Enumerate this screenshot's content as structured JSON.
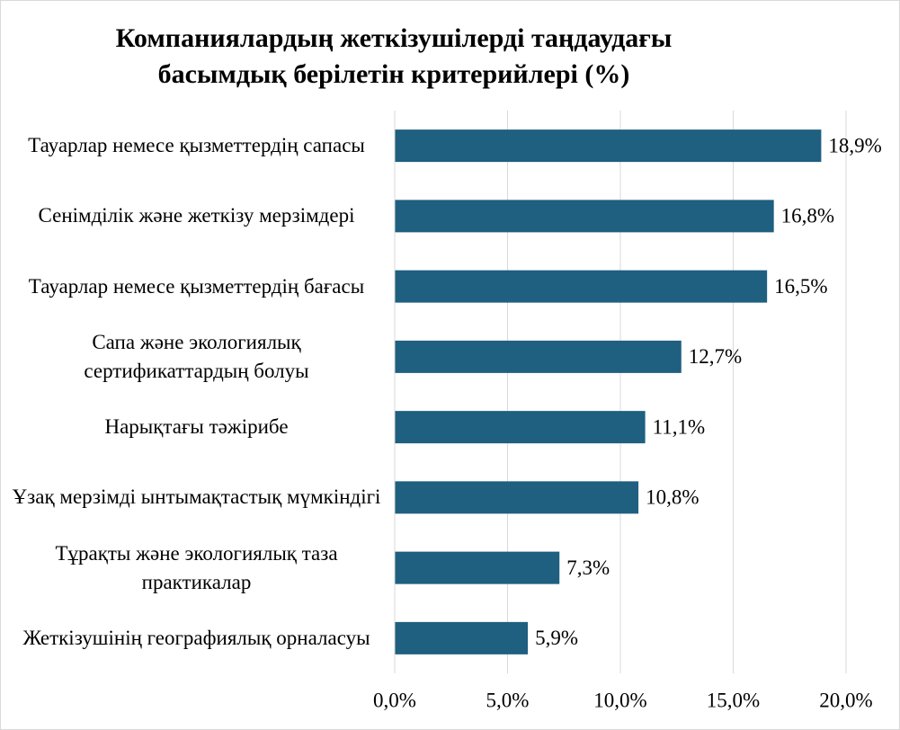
{
  "chart_data": {
    "type": "bar",
    "orientation": "horizontal",
    "title": "Компаниялардың жеткізушілерді таңдаудағы басымдық берілетін критерийлері (%)",
    "categories": [
      "Тауарлар немесе қызметтердің сапасы",
      "Сенімділік және жеткізу мерзімдері",
      "Тауарлар немесе қызметтердің бағасы",
      "Сапа және экологиялық сертификаттардың болуы",
      "Нарықтағы тәжірибе",
      "Ұзақ мерзімді ынтымақтастық мүмкіндігі",
      "Тұрақты және экологиялық таза практикалар",
      "Жеткізушінің географиялық орналасуы"
    ],
    "values": [
      18.9,
      16.8,
      16.5,
      12.7,
      11.1,
      10.8,
      7.3,
      5.9
    ],
    "value_labels": [
      "18,9%",
      "16,8%",
      "16,5%",
      "12,7%",
      "11,1%",
      "10,8%",
      "7,3%",
      "5,9%"
    ],
    "color": "#1f5f80",
    "xlim": [
      0,
      20
    ],
    "xticks": [
      {
        "value": 0,
        "label": "0,0%"
      },
      {
        "value": 5,
        "label": "5,0%"
      },
      {
        "value": 10,
        "label": "10,0%"
      },
      {
        "value": 15,
        "label": "15,0%"
      },
      {
        "value": 20,
        "label": "20,0%"
      }
    ],
    "grid": true
  }
}
